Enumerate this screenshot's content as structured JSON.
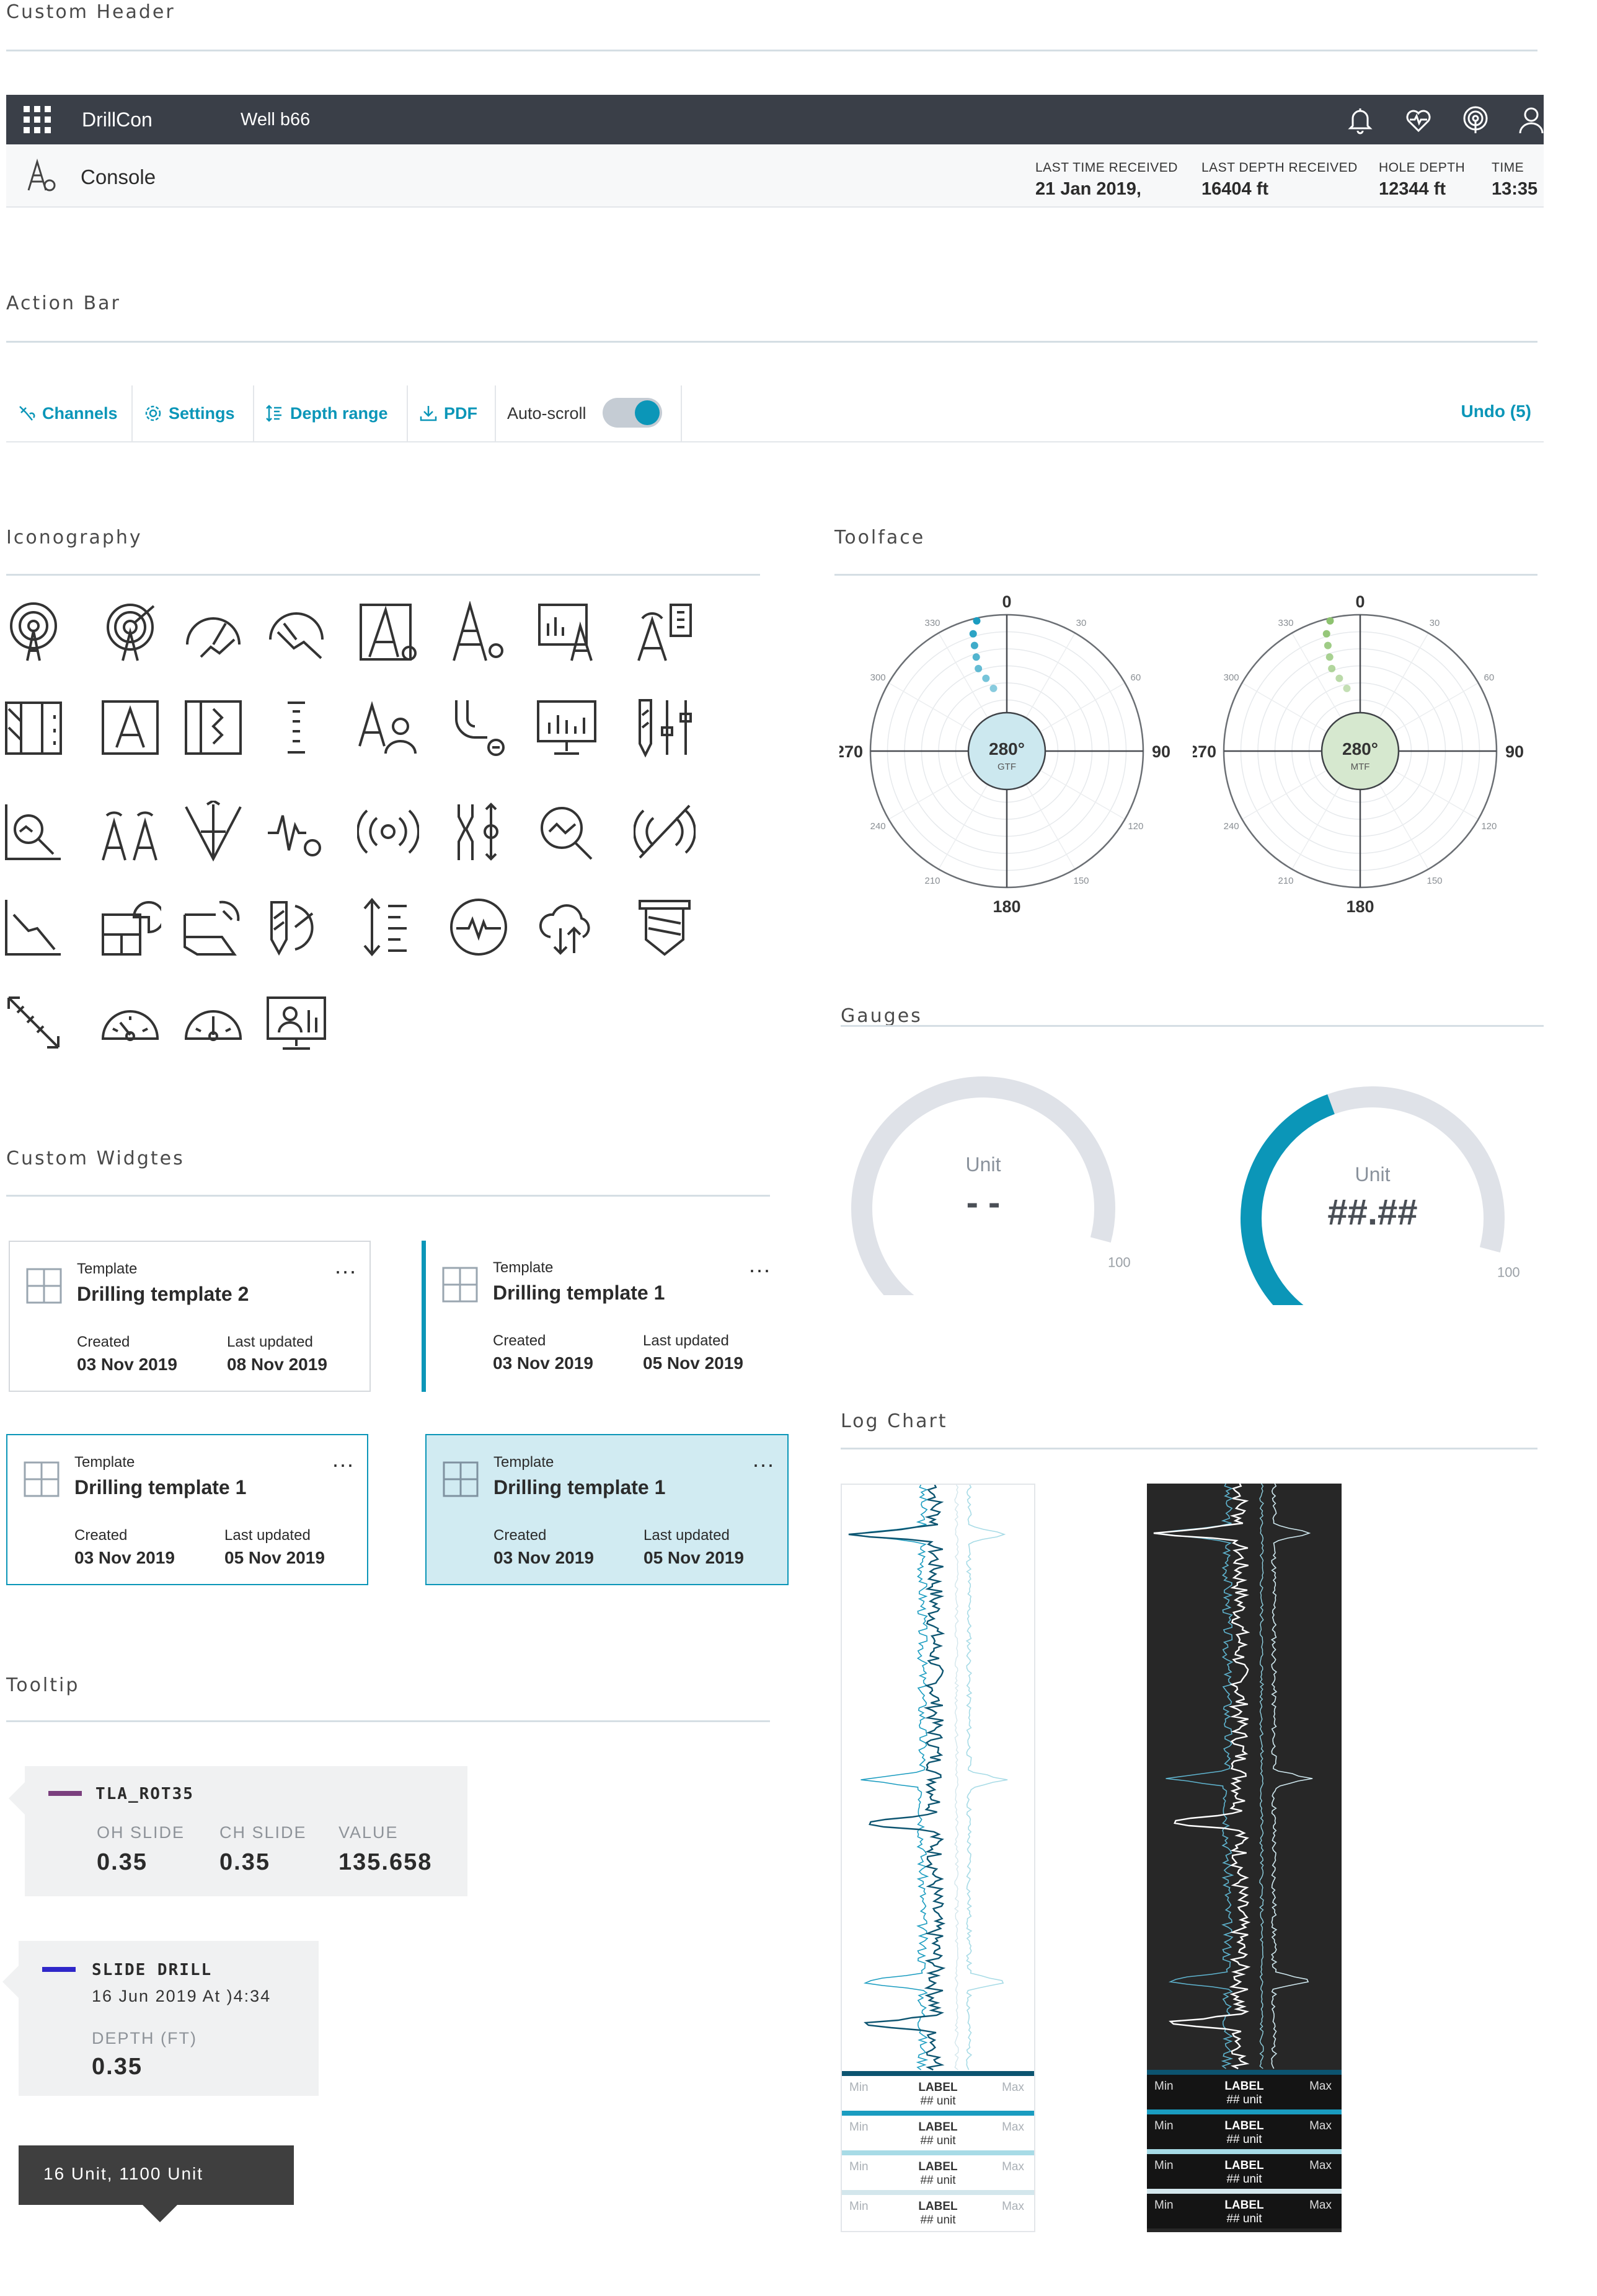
{
  "sections": {
    "custom_header": "Custom Header",
    "action_bar": "Action Bar",
    "iconography": "Iconography",
    "toolface": "Toolface",
    "gauges": "Gauges",
    "custom_widgets": "Custom Widgtes",
    "log_chart": "Log Chart",
    "tooltip": "Tooltip"
  },
  "header": {
    "app_name": "DrillCon",
    "well": "Well b66",
    "page_title": "Console",
    "icons": [
      "bell-icon",
      "heart-monitor-icon",
      "signal-tower-icon",
      "user-icon"
    ],
    "stats": [
      {
        "label": "LAST TIME RECEIVED",
        "value": "21 Jan 2019,"
      },
      {
        "label": "LAST DEPTH RECEIVED",
        "value": "16404 ft"
      },
      {
        "label": "HOLE DEPTH",
        "value": "12344 ft"
      },
      {
        "label": "TIME",
        "value": "13:35"
      }
    ]
  },
  "action_bar": {
    "channels": "Channels",
    "settings": "Settings",
    "depth_range": "Depth range",
    "pdf": "PDF",
    "auto_scroll": "Auto-scroll",
    "auto_scroll_on": true,
    "undo": "Undo (5)",
    "accent": "#0b96b8"
  },
  "toolface": [
    {
      "center_value": "280°",
      "center_label": "GTF",
      "center_color": "#cce8ef",
      "dot_color": "#1a9cc0",
      "major": {
        "top": "0",
        "right": "90",
        "bottom": "180",
        "left": "270"
      },
      "minor": [
        "30",
        "60",
        "120",
        "150",
        "210",
        "240",
        "300",
        "330"
      ]
    },
    {
      "center_value": "280°",
      "center_label": "MTF",
      "center_color": "#d6e8cf",
      "dot_color": "#8dc26f",
      "major": {
        "top": "0",
        "right": "90",
        "bottom": "180",
        "left": "270"
      },
      "minor": [
        "30",
        "60",
        "120",
        "150",
        "210",
        "240",
        "300",
        "330"
      ]
    }
  ],
  "gauges": [
    {
      "unit": "Unit",
      "value": "- -",
      "min": "0",
      "max": "100",
      "fill_fraction": 0,
      "fill_color": "#0b96b8"
    },
    {
      "unit": "Unit",
      "value": "##.##",
      "min": "0",
      "max": "100",
      "fill_fraction": 0.5,
      "fill_color": "#0b96b8"
    }
  ],
  "widgets": [
    {
      "template_label": "Template",
      "name": "Drilling template 2",
      "created_label": "Created",
      "created": "03 Nov 2019",
      "updated_label": "Last updated",
      "updated": "08 Nov 2019",
      "menu": "..."
    },
    {
      "template_label": "Template",
      "name": "Drilling template 1",
      "created_label": "Created",
      "created": "03 Nov 2019",
      "updated_label": "Last updated",
      "updated": "05 Nov 2019",
      "menu": "..."
    },
    {
      "template_label": "Template",
      "name": "Drilling template 1",
      "created_label": "Created",
      "created": "03 Nov 2019",
      "updated_label": "Last updated",
      "updated": "05 Nov 2019",
      "menu": "..."
    },
    {
      "template_label": "Template",
      "name": "Drilling template 1",
      "created_label": "Created",
      "created": "03 Nov 2019",
      "updated_label": "Last updated",
      "updated": "05 Nov 2019",
      "menu": "..."
    }
  ],
  "tooltips": {
    "t1": {
      "name": "TLA_ROT35",
      "swatch": "#7b3f7e",
      "cols": [
        {
          "label": "OH SLIDE",
          "value": "0.35"
        },
        {
          "label": "CH SLIDE",
          "value": "0.35"
        },
        {
          "label": "VALUE",
          "value": "135.658"
        }
      ]
    },
    "t2": {
      "name": "SLIDE DRILL",
      "swatch": "#2f27c9",
      "sub": "16 Jun 2019 At )4:34",
      "label": "DEPTH (FT)",
      "value": "0.35"
    },
    "t3": {
      "text": "16 Unit, 1100 Unit"
    }
  },
  "log_chart": {
    "tracks": [
      {
        "min": "Min",
        "label": "LABEL",
        "unit": "## unit",
        "max": "Max",
        "color": "#0c5470"
      },
      {
        "min": "Min",
        "label": "LABEL",
        "unit": "## unit",
        "max": "Max",
        "color": "#1a9cc0"
      },
      {
        "min": "Min",
        "label": "LABEL",
        "unit": "## unit",
        "max": "Max",
        "color": "#a7dbe6"
      },
      {
        "min": "Min",
        "label": "LABEL",
        "unit": "## unit",
        "max": "Max",
        "color": "#d3e6ec"
      }
    ]
  }
}
